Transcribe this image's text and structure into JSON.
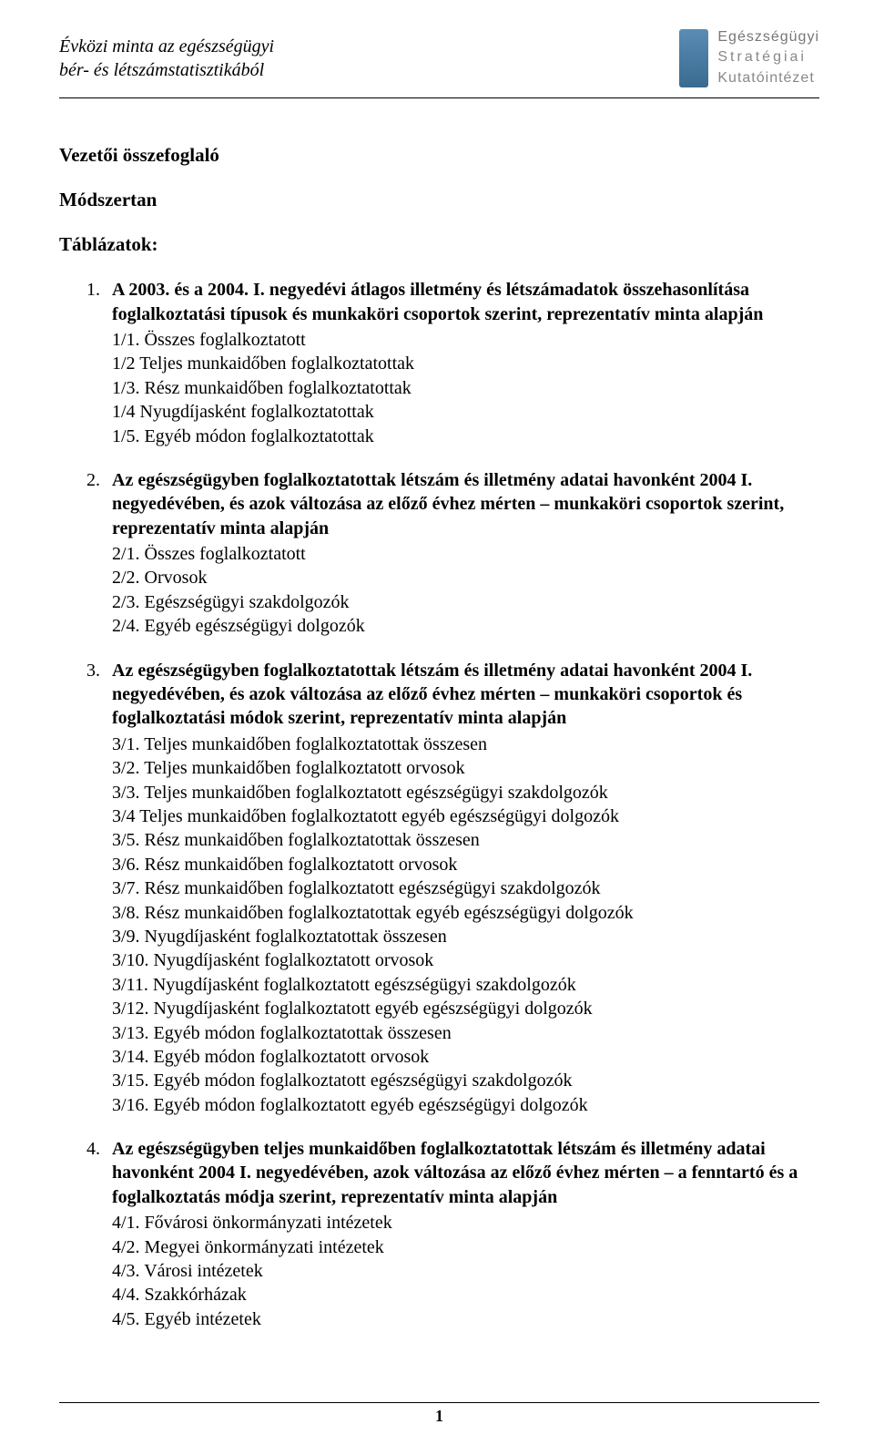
{
  "header": {
    "left_line1": "Évközi minta az egészségügyi",
    "left_line2": "bér- és létszámstatisztikából",
    "logo_line1": "Egészségügyi",
    "logo_line2": "Stratégiai",
    "logo_line3": "Kutatóintézet",
    "logo_color": "#4b7fa6"
  },
  "headings": {
    "h1": "Vezetői összefoglaló",
    "h2": "Módszertan",
    "h3": "Táblázatok:"
  },
  "items": [
    {
      "head": "A 2003. és a 2004. I. negyedévi átlagos illetmény és létszámadatok összehasonlítása foglalkoztatási típusok és munkaköri csoportok szerint, reprezentatív minta alapján",
      "subs": [
        "1/1. Összes foglalkoztatott",
        "1/2 Teljes munkaidőben foglalkoztatottak",
        "1/3. Rész munkaidőben foglalkoztatottak",
        "1/4 Nyugdíjasként foglalkoztatottak",
        "1/5. Egyéb módon foglalkoztatottak"
      ]
    },
    {
      "head": "Az egészségügyben foglalkoztatottak létszám és illetmény adatai havonként 2004 I. negyedévében, és azok változása az előző évhez mérten – munkaköri csoportok szerint, reprezentatív minta alapján",
      "subs": [
        "2/1. Összes foglalkoztatott",
        "2/2. Orvosok",
        "2/3. Egészségügyi szakdolgozók",
        "2/4. Egyéb egészségügyi dolgozók"
      ]
    },
    {
      "head": "Az egészségügyben foglalkoztatottak létszám és illetmény adatai havonként 2004 I. negyedévében, és azok változása az előző évhez mérten – munkaköri csoportok és foglalkoztatási módok szerint, reprezentatív minta alapján",
      "subs": [
        "3/1. Teljes munkaidőben foglalkoztatottak összesen",
        "3/2. Teljes munkaidőben foglalkoztatott orvosok",
        "3/3. Teljes munkaidőben foglalkoztatott egészségügyi szakdolgozók",
        "3/4  Teljes munkaidőben foglalkoztatott egyéb egészségügyi dolgozók",
        "3/5. Rész munkaidőben foglalkoztatottak összesen",
        "3/6. Rész munkaidőben foglalkoztatott orvosok",
        "3/7. Rész munkaidőben foglalkoztatott egészségügyi szakdolgozók",
        "3/8. Rész munkaidőben foglalkoztatottak egyéb egészségügyi dolgozók",
        "3/9. Nyugdíjasként foglalkoztatottak összesen",
        "3/10. Nyugdíjasként foglalkoztatott orvosok",
        "3/11. Nyugdíjasként foglalkoztatott egészségügyi szakdolgozók",
        "3/12. Nyugdíjasként foglalkoztatott egyéb egészségügyi dolgozók",
        "3/13. Egyéb módon foglalkoztatottak összesen",
        "3/14. Egyéb módon foglalkoztatott orvosok",
        "3/15. Egyéb módon foglalkoztatott egészségügyi szakdolgozók",
        "3/16. Egyéb módon foglalkoztatott egyéb egészségügyi dolgozók"
      ]
    },
    {
      "head": "Az egészségügyben teljes munkaidőben foglalkoztatottak létszám és illetmény adatai havonként 2004 I. negyedévében, azok változása az előző évhez mérten – a fenntartó és a foglalkoztatás módja szerint, reprezentatív minta alapján",
      "subs": [
        "4/1. Fővárosi önkormányzati intézetek",
        "4/2. Megyei önkormányzati intézetek",
        "4/3. Városi intézetek",
        "4/4. Szakkórházak",
        "4/5. Egyéb intézetek"
      ]
    }
  ],
  "page_number": "1"
}
